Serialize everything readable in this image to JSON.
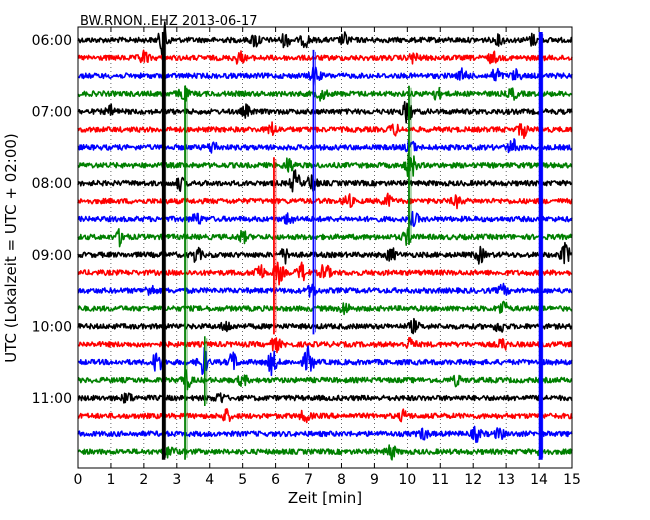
{
  "chart_data": {
    "type": "line",
    "title": "BW.RNON..EHZ 2013-06-17",
    "xlabel": "Zeit  [min]",
    "ylabel": "UTC (Lokalzeit = UTC + 02:00)",
    "xlim": [
      0,
      15
    ],
    "x_ticks": [
      "0",
      "1",
      "2",
      "3",
      "4",
      "5",
      "6",
      "7",
      "8",
      "9",
      "10",
      "11",
      "12",
      "13",
      "14",
      "15"
    ],
    "y_ticks": [
      "06:00",
      "07:00",
      "08:00",
      "09:00",
      "10:00",
      "11:00"
    ],
    "grid": "x-dotted",
    "trace_colors": [
      "#000000",
      "#ff0000",
      "#0000ff",
      "#008000"
    ],
    "rows": [
      {
        "start": "06:00",
        "color": "#000000",
        "events": [
          [
            2.6,
            2.4
          ],
          [
            5.4,
            1.0
          ],
          [
            6.3,
            0.9
          ],
          [
            6.9,
            0.8
          ],
          [
            8.1,
            0.8
          ],
          [
            12.8,
            0.6
          ],
          [
            13.8,
            0.7
          ]
        ]
      },
      {
        "start": "06:15",
        "color": "#ff0000",
        "events": [
          [
            2.0,
            0.9
          ],
          [
            4.9,
            0.8
          ],
          [
            10.2,
            0.7
          ],
          [
            12.6,
            0.7
          ]
        ]
      },
      {
        "start": "06:30",
        "color": "#0000ff",
        "events": [
          [
            7.2,
            1.2
          ],
          [
            11.7,
            0.9
          ],
          [
            12.7,
            1.0
          ],
          [
            13.3,
            0.7
          ]
        ]
      },
      {
        "start": "06:45",
        "color": "#008000",
        "events": [
          [
            3.2,
            1.0
          ],
          [
            7.4,
            0.8
          ],
          [
            10.9,
            0.7
          ],
          [
            13.2,
            0.7
          ]
        ]
      },
      {
        "start": "07:00",
        "color": "#000000",
        "events": [
          [
            1.0,
            0.7
          ],
          [
            5.1,
            0.7
          ],
          [
            10.0,
            1.6
          ]
        ]
      },
      {
        "start": "07:15",
        "color": "#ff0000",
        "events": [
          [
            5.9,
            0.8
          ],
          [
            9.6,
            0.7
          ],
          [
            13.5,
            1.0
          ]
        ]
      },
      {
        "start": "07:30",
        "color": "#0000ff",
        "events": [
          [
            4.1,
            0.8
          ],
          [
            10.1,
            0.9
          ],
          [
            13.2,
            1.0
          ]
        ]
      },
      {
        "start": "07:45",
        "color": "#008000",
        "events": [
          [
            6.4,
            1.0
          ],
          [
            10.1,
            2.0
          ]
        ]
      },
      {
        "start": "08:00",
        "color": "#000000",
        "events": [
          [
            3.1,
            0.8
          ],
          [
            6.6,
            1.6
          ],
          [
            7.1,
            1.2
          ]
        ]
      },
      {
        "start": "08:15",
        "color": "#ff0000",
        "events": [
          [
            8.2,
            0.9
          ],
          [
            9.4,
            0.8
          ],
          [
            11.5,
            0.7
          ]
        ]
      },
      {
        "start": "08:30",
        "color": "#0000ff",
        "events": [
          [
            3.6,
            0.8
          ],
          [
            6.4,
            0.8
          ],
          [
            10.2,
            0.8
          ]
        ]
      },
      {
        "start": "08:45",
        "color": "#008000",
        "events": [
          [
            1.3,
            1.1
          ],
          [
            5.0,
            0.7
          ],
          [
            10.0,
            0.9
          ]
        ]
      },
      {
        "start": "09:00",
        "color": "#000000",
        "events": [
          [
            3.6,
            1.0
          ],
          [
            6.3,
            1.0
          ],
          [
            9.5,
            0.9
          ],
          [
            12.2,
            1.0
          ],
          [
            14.8,
            1.4
          ]
        ]
      },
      {
        "start": "09:15",
        "color": "#ff0000",
        "events": [
          [
            5.5,
            1.3
          ],
          [
            6.1,
            1.4
          ],
          [
            6.8,
            1.2
          ],
          [
            7.5,
            1.2
          ]
        ]
      },
      {
        "start": "09:30",
        "color": "#0000ff",
        "events": [
          [
            2.2,
            0.7
          ],
          [
            7.1,
            0.8
          ],
          [
            12.9,
            0.7
          ]
        ]
      },
      {
        "start": "09:45",
        "color": "#008000",
        "events": [
          [
            8.1,
            0.8
          ],
          [
            12.9,
            1.0
          ]
        ]
      },
      {
        "start": "10:00",
        "color": "#000000",
        "events": [
          [
            4.5,
            0.7
          ],
          [
            10.2,
            0.8
          ],
          [
            12.8,
            0.8
          ]
        ]
      },
      {
        "start": "10:15",
        "color": "#ff0000",
        "events": [
          [
            6.0,
            0.9
          ],
          [
            10.1,
            0.8
          ],
          [
            12.9,
            0.7
          ]
        ]
      },
      {
        "start": "10:30",
        "color": "#0000ff",
        "events": [
          [
            2.4,
            1.5
          ],
          [
            3.8,
            1.9
          ],
          [
            4.7,
            1.2
          ],
          [
            5.9,
            1.6
          ],
          [
            7.0,
            2.0
          ]
        ]
      },
      {
        "start": "10:45",
        "color": "#008000",
        "events": [
          [
            3.3,
            1.2
          ],
          [
            5.0,
            0.7
          ],
          [
            11.5,
            0.6
          ]
        ]
      },
      {
        "start": "11:00",
        "color": "#000000",
        "events": [
          [
            1.5,
            0.7
          ],
          [
            4.3,
            0.7
          ]
        ]
      },
      {
        "start": "11:15",
        "color": "#ff0000",
        "events": [
          [
            4.5,
            0.8
          ],
          [
            6.9,
            0.8
          ],
          [
            9.9,
            0.7
          ]
        ]
      },
      {
        "start": "11:30",
        "color": "#0000ff",
        "events": [
          [
            10.5,
            0.7
          ],
          [
            12.1,
            0.9
          ],
          [
            12.8,
            0.7
          ]
        ]
      },
      {
        "start": "11:45",
        "color": "#008000",
        "events": [
          [
            2.8,
            0.8
          ],
          [
            9.5,
            1.0
          ],
          [
            14.1,
            0.7
          ]
        ]
      }
    ],
    "vertical_spikes": [
      {
        "x": 2.6,
        "from_row": 0,
        "to_row": 23,
        "color": "#000000",
        "width": 3.5
      },
      {
        "x": 3.25,
        "from_row": 3,
        "to_row": 23,
        "color": "#008000",
        "width": 1.8
      },
      {
        "x": 14.05,
        "from_row": 0,
        "to_row": 23,
        "color": "#0000ff",
        "width": 4
      },
      {
        "x": 5.95,
        "from_row": 7,
        "to_row": 16,
        "color": "#ff0000",
        "width": 1.8
      },
      {
        "x": 7.15,
        "from_row": 1,
        "to_row": 16,
        "color": "#0000ff",
        "width": 1.8
      },
      {
        "x": 10.05,
        "from_row": 3,
        "to_row": 11,
        "color": "#008000",
        "width": 1.8
      },
      {
        "x": 3.85,
        "from_row": 17,
        "to_row": 20,
        "color": "#008000",
        "width": 1.6
      }
    ]
  }
}
